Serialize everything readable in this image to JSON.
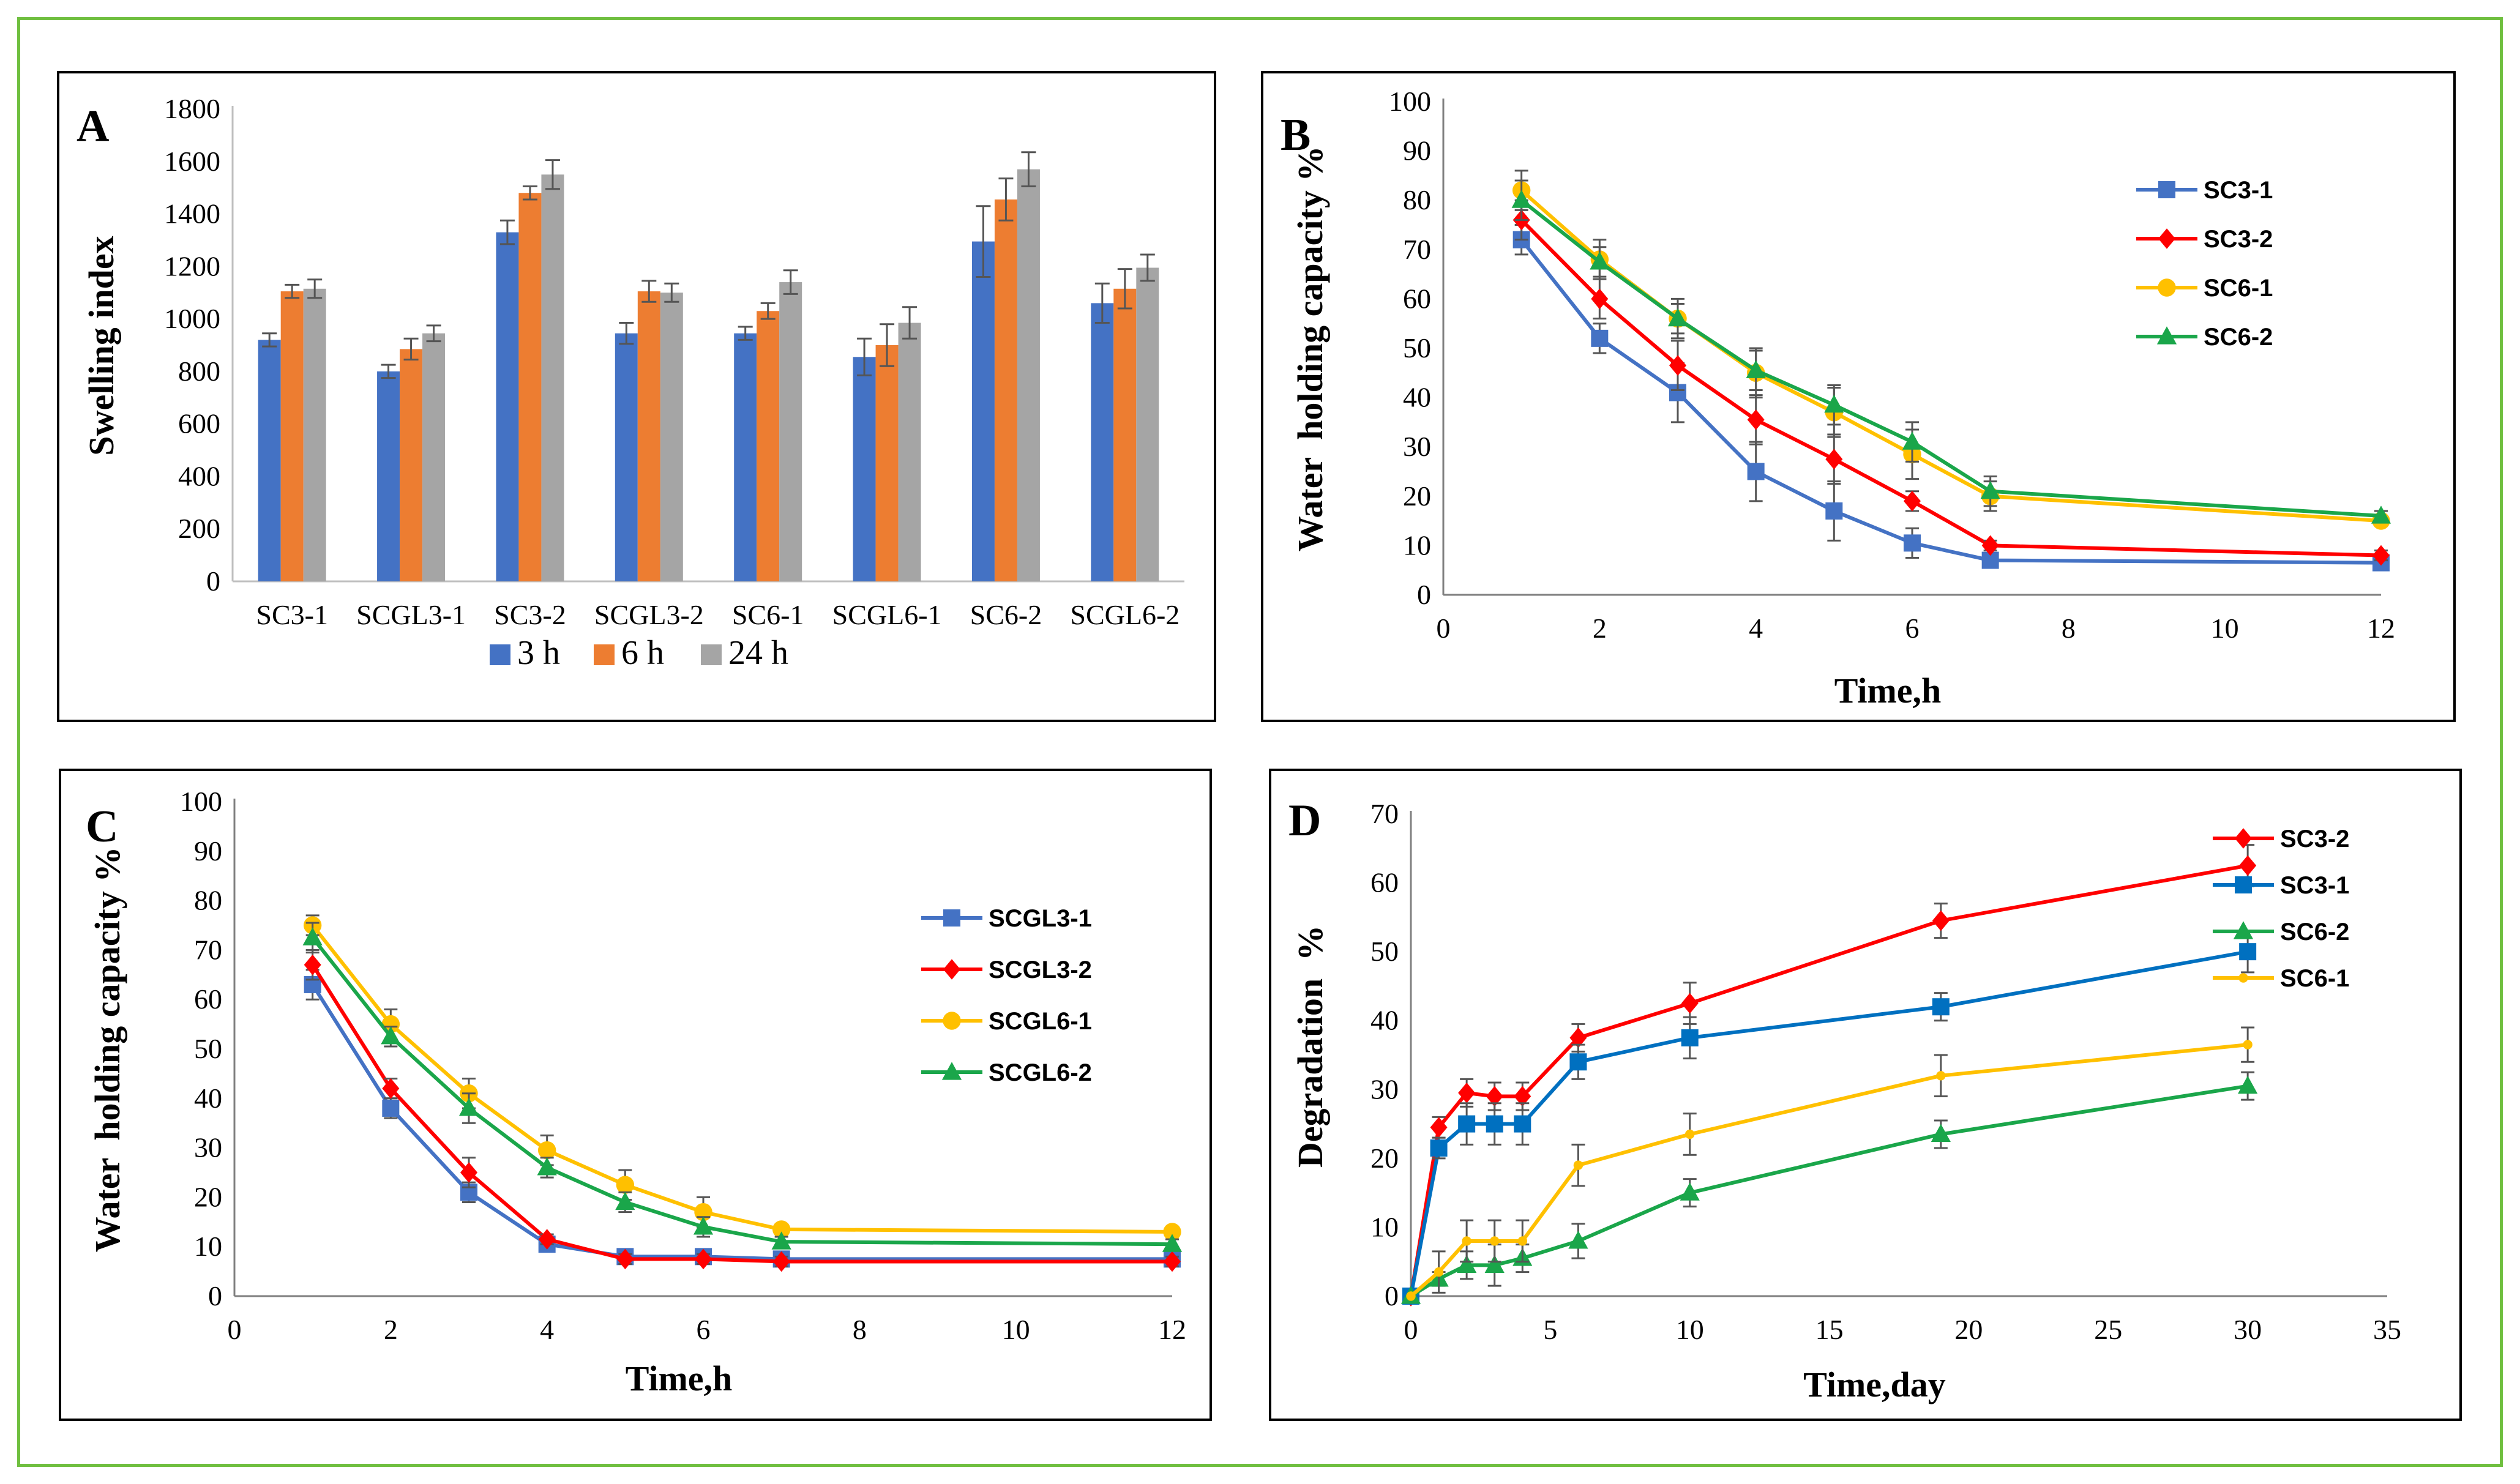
{
  "chart_data": [
    {
      "panel": "A",
      "type": "bar",
      "ylabel": "Swelling index",
      "xlabel": "",
      "ylim": [
        0,
        1800
      ],
      "yticks": [
        0,
        200,
        400,
        600,
        800,
        1000,
        1200,
        1400,
        1600,
        1800
      ],
      "categories": [
        "SC3-1",
        "SCGL3-1",
        "SC3-2",
        "SCGL3-2",
        "SC6-1",
        "SCGL6-1",
        "SC6-2",
        "SCGL6-2"
      ],
      "legend_position": "bottom",
      "series": [
        {
          "name": "3 h",
          "color": "#4472c4",
          "values": [
            920,
            800,
            1330,
            945,
            945,
            855,
            1295,
            1060
          ],
          "errors": [
            25,
            25,
            45,
            40,
            25,
            70,
            135,
            75
          ]
        },
        {
          "name": "6 h",
          "color": "#ed7d31",
          "values": [
            1105,
            885,
            1480,
            1105,
            1030,
            900,
            1455,
            1115
          ],
          "errors": [
            25,
            40,
            25,
            40,
            30,
            80,
            80,
            75
          ]
        },
        {
          "name": "24 h",
          "color": "#a5a5a5",
          "values": [
            1115,
            945,
            1550,
            1100,
            1140,
            985,
            1570,
            1195
          ],
          "errors": [
            35,
            30,
            55,
            35,
            45,
            60,
            65,
            50
          ]
        }
      ]
    },
    {
      "panel": "B",
      "type": "line",
      "xlabel": "Time,h",
      "ylabel": "Water  holding capacity %",
      "xlim": [
        0,
        12
      ],
      "ylim": [
        0,
        100
      ],
      "xticks": [
        0,
        2,
        4,
        6,
        8,
        10,
        12
      ],
      "yticks": [
        0,
        10,
        20,
        30,
        40,
        50,
        60,
        70,
        80,
        90,
        100
      ],
      "legend_position": "top-right",
      "x": [
        1,
        2,
        3,
        4,
        5,
        6,
        7,
        12
      ],
      "series": [
        {
          "name": "SC3-1",
          "color": "#4472c4",
          "marker": "square",
          "values": [
            72,
            52,
            41,
            25,
            17,
            10.5,
            7,
            6.5
          ],
          "errors": [
            3,
            3,
            6,
            6,
            6,
            3,
            1,
            1
          ]
        },
        {
          "name": "SC3-2",
          "color": "#ff0000",
          "marker": "diamond",
          "values": [
            76,
            60,
            46.5,
            35.5,
            27.5,
            19,
            10,
            8
          ],
          "errors": [
            4,
            4,
            5,
            5,
            5,
            2,
            1,
            1
          ]
        },
        {
          "name": "SC6-1",
          "color": "#ffc000",
          "marker": "circle",
          "values": [
            82,
            68,
            56,
            45,
            37,
            28.5,
            20,
            15
          ],
          "errors": [
            4,
            4,
            4,
            5,
            5,
            5,
            3,
            1
          ]
        },
        {
          "name": "SC6-2",
          "color": "#1aa64a",
          "marker": "triangle",
          "values": [
            80,
            67.5,
            56,
            45.5,
            38.5,
            31,
            21,
            16
          ],
          "errors": [
            4,
            3,
            3,
            4,
            4,
            4,
            3,
            1
          ]
        }
      ]
    },
    {
      "panel": "C",
      "type": "line",
      "xlabel": "Time,h",
      "ylabel": "Water  holding capacity %",
      "xlim": [
        0,
        12
      ],
      "ylim": [
        0,
        100
      ],
      "xticks": [
        0,
        2,
        4,
        6,
        8,
        10,
        12
      ],
      "yticks": [
        0,
        10,
        20,
        30,
        40,
        50,
        60,
        70,
        80,
        90,
        100
      ],
      "legend_position": "right",
      "x": [
        1,
        2,
        3,
        4,
        5,
        6,
        7,
        12
      ],
      "series": [
        {
          "name": "SCGL3-1",
          "color": "#4472c4",
          "marker": "square",
          "values": [
            63,
            38,
            21,
            10.5,
            8,
            8,
            7.5,
            7.5
          ],
          "errors": [
            3,
            2,
            2,
            1,
            1,
            1,
            1,
            1
          ]
        },
        {
          "name": "SCGL3-2",
          "color": "#ff0000",
          "marker": "diamond",
          "values": [
            67,
            42,
            25,
            11.5,
            7.5,
            7.5,
            7,
            7
          ],
          "errors": [
            3,
            2,
            3,
            1,
            1,
            1,
            1,
            1
          ]
        },
        {
          "name": "SCGL6-1",
          "color": "#ffc000",
          "marker": "circle",
          "values": [
            75,
            55,
            41,
            29.5,
            22.5,
            17,
            13.5,
            13
          ],
          "errors": [
            2,
            3,
            3,
            3,
            3,
            3,
            1,
            1
          ]
        },
        {
          "name": "SCGL6-2",
          "color": "#1aa64a",
          "marker": "triangle",
          "values": [
            72.5,
            52.5,
            38,
            26,
            19,
            14,
            11,
            10.5
          ],
          "errors": [
            3,
            2,
            3,
            2,
            2,
            2,
            1,
            1
          ]
        }
      ]
    },
    {
      "panel": "D",
      "type": "line",
      "xlabel": "Time,day",
      "ylabel": "Degradation  %",
      "xlim": [
        0,
        35
      ],
      "ylim": [
        0,
        70
      ],
      "xticks": [
        0,
        5,
        10,
        15,
        20,
        25,
        30,
        35
      ],
      "yticks": [
        0,
        10,
        20,
        30,
        40,
        50,
        60,
        70
      ],
      "legend_position": "top-right",
      "x": [
        0,
        1,
        2,
        3,
        4,
        6,
        10,
        19,
        30
      ],
      "series": [
        {
          "name": "SC3-2",
          "color": "#ff0000",
          "marker": "diamond",
          "values": [
            0,
            24.5,
            29.5,
            29,
            29,
            37.5,
            42.5,
            54.5,
            62.5
          ],
          "errors": [
            0,
            1.5,
            2,
            2,
            2,
            2,
            3,
            2.5,
            3
          ]
        },
        {
          "name": "SC3-1",
          "color": "#0070c0",
          "marker": "square",
          "values": [
            0,
            21.5,
            25,
            25,
            25,
            34,
            37.5,
            42,
            50
          ],
          "errors": [
            0,
            1.5,
            3,
            3,
            3,
            2.5,
            3,
            2,
            3
          ]
        },
        {
          "name": "SC6-2",
          "color": "#1aa64a",
          "marker": "triangle",
          "values": [
            0,
            2.5,
            4.5,
            4.5,
            5.5,
            8,
            15,
            23.5,
            30.5
          ],
          "errors": [
            0,
            1,
            2,
            3,
            2,
            2.5,
            2,
            2,
            2
          ]
        },
        {
          "name": "SC6-1",
          "color": "#ffc000",
          "marker": "dot",
          "values": [
            0,
            3.5,
            8,
            8,
            8,
            19,
            23.5,
            32,
            36.5
          ],
          "errors": [
            0,
            3,
            3,
            3,
            3,
            3,
            3,
            3,
            2.5
          ]
        }
      ]
    }
  ]
}
